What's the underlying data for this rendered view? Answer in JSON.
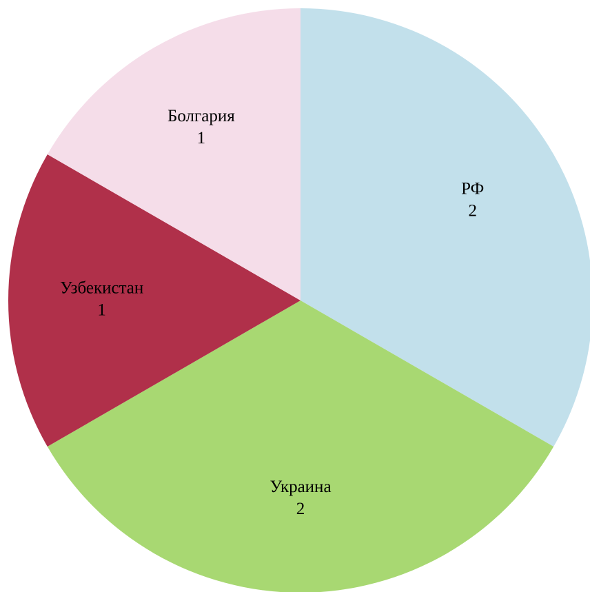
{
  "chart_data": {
    "type": "pie",
    "categories": [
      "РФ",
      "Украина",
      "Узбекистан",
      "Болгария"
    ],
    "values": [
      2,
      2,
      1,
      1
    ],
    "colors": [
      "#c2e0eb",
      "#a8d872",
      "#b0304a",
      "#f5dde9"
    ]
  }
}
